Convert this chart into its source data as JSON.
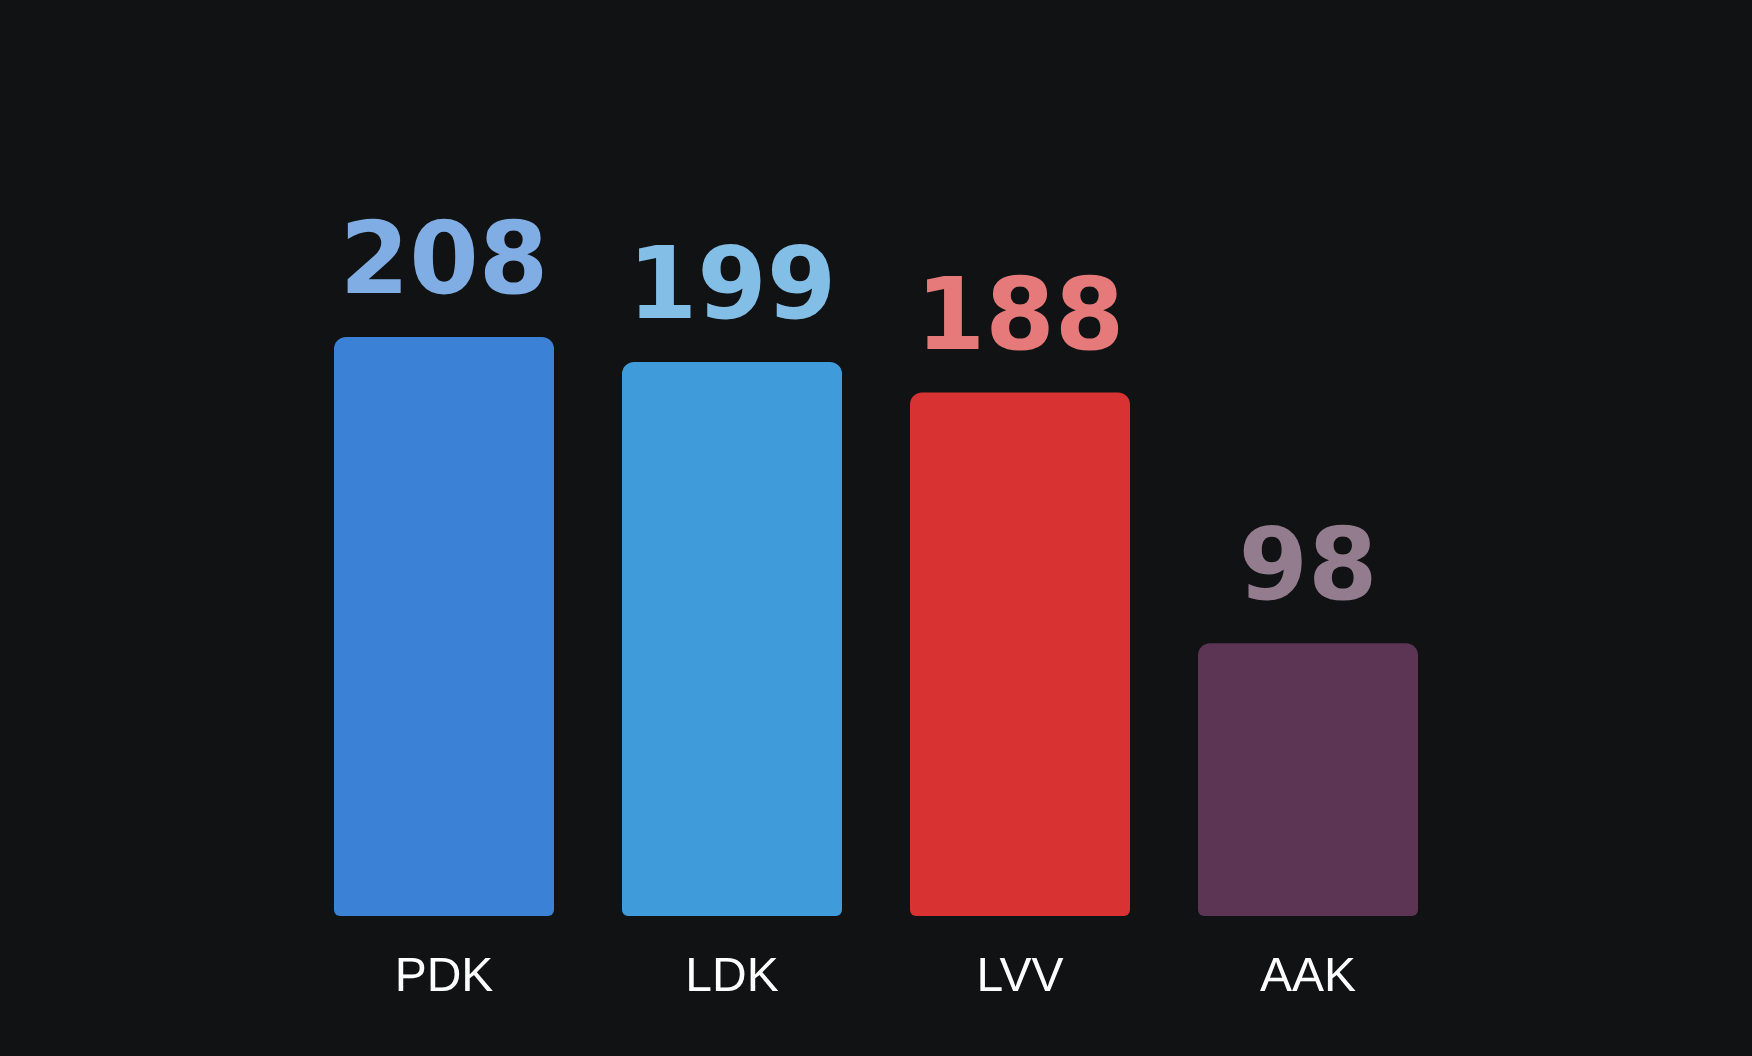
{
  "chart_data": {
    "type": "bar",
    "categories": [
      "PDK",
      "LDK",
      "LVV",
      "AAK"
    ],
    "values": [
      208,
      199,
      188,
      98
    ],
    "colors": [
      "#3b82d6",
      "#3f9bd9",
      "#d83232",
      "#5b3553"
    ],
    "data_labels": true
  }
}
